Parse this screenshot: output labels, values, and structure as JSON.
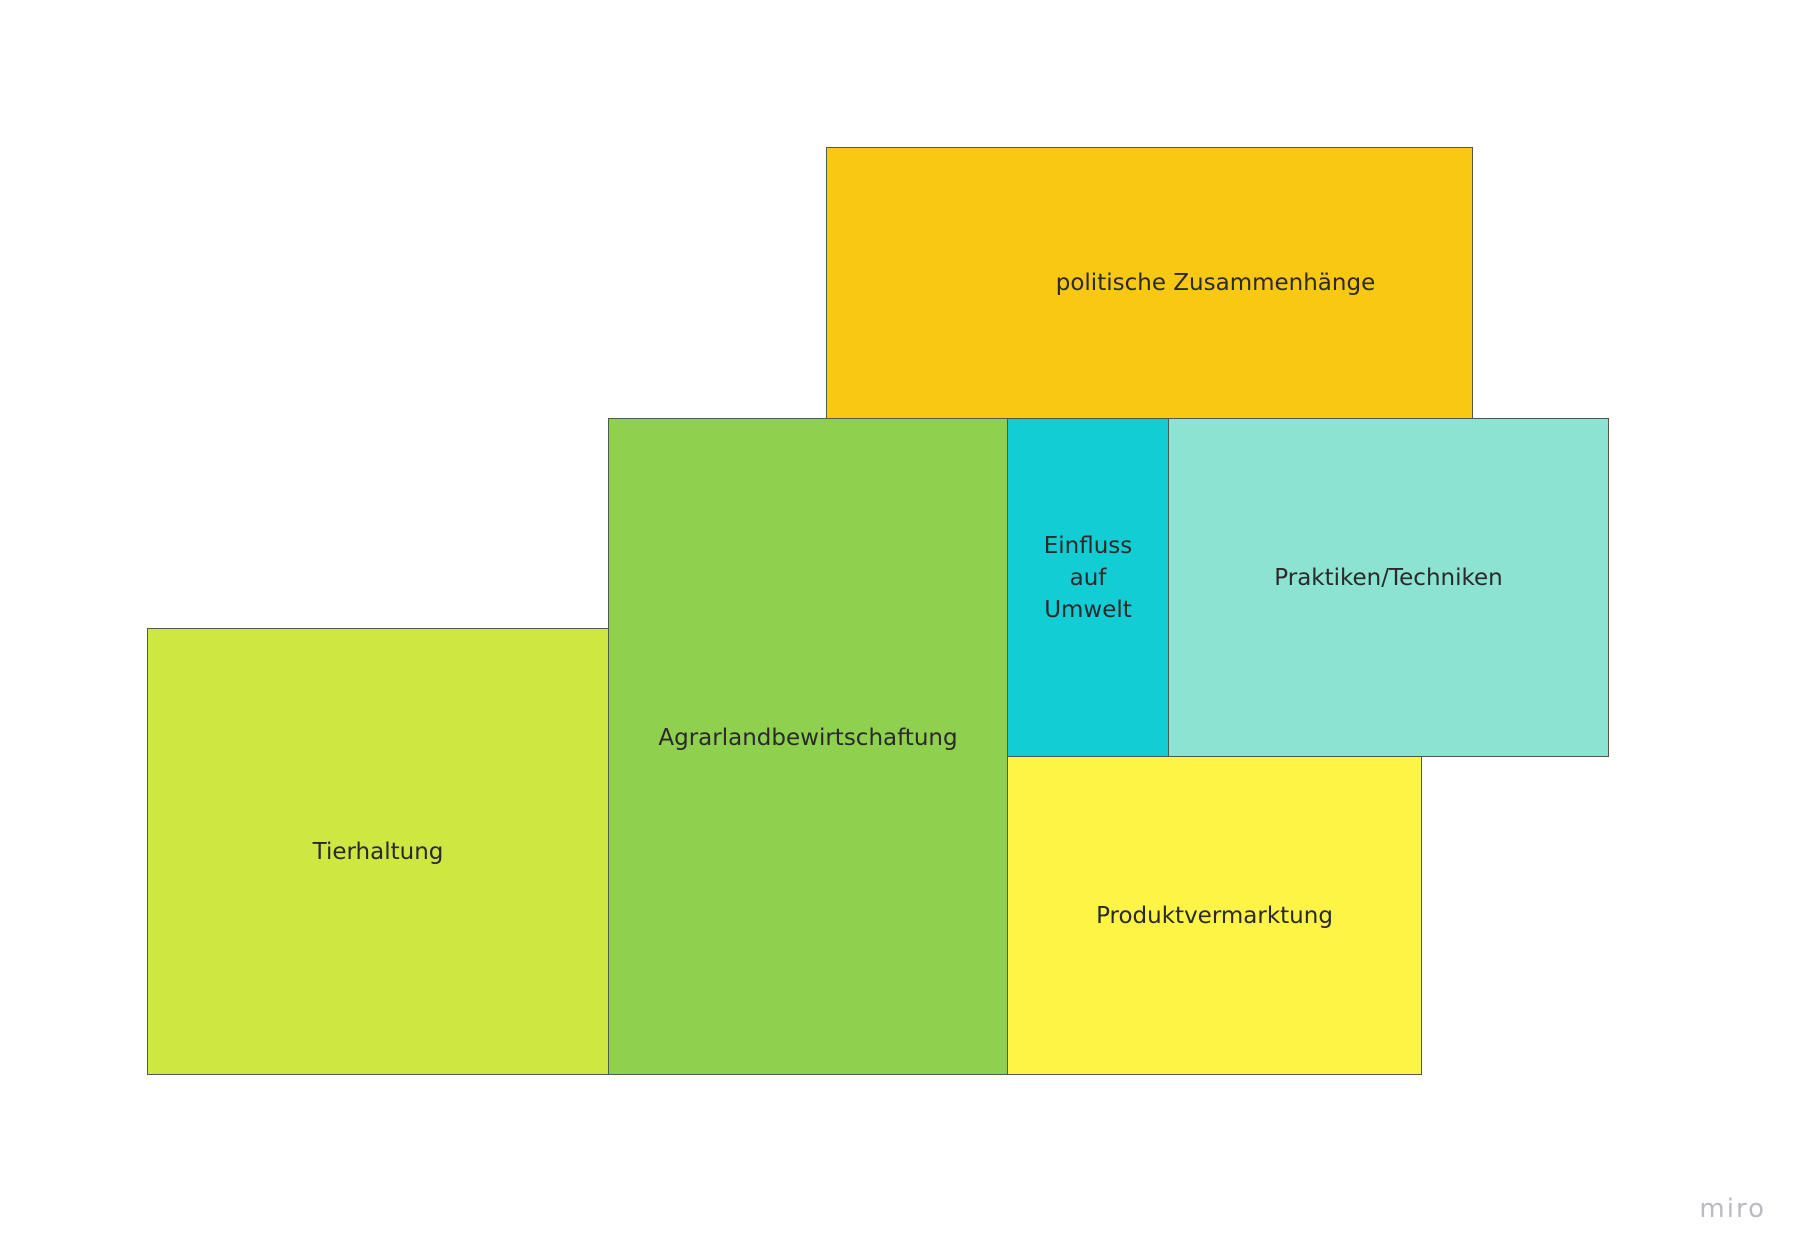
{
  "boxes": {
    "politik": {
      "label": "politische Zusammenhänge",
      "color": "#F8C813"
    },
    "agrar": {
      "label": "Agrarlandbewirtschaftung",
      "color": "#8FD14F"
    },
    "tier": {
      "label": "Tierhaltung",
      "color": "#CEE741"
    },
    "einfluss": {
      "label": "Einfluss auf Umwelt",
      "color": "#12CDD4"
    },
    "praktiken": {
      "label": "Praktiken/Techniken",
      "color": "#8CE3D1"
    },
    "produkt": {
      "label": "Produktvermarktung",
      "color": "#FEF445"
    }
  },
  "watermark": "miro"
}
